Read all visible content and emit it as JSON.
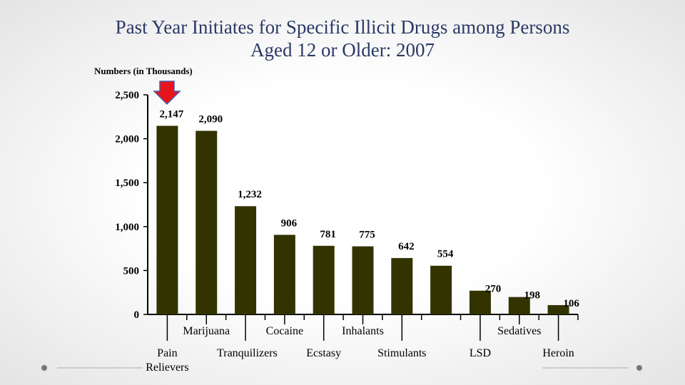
{
  "chart_data": {
    "type": "bar",
    "title": "Past Year Initiates for Specific Illicit Drugs among Persons Aged 12 or Older: 2007",
    "y_axis_label": "Numbers (in Thousands)",
    "categories": [
      "Pain Relievers",
      "Marijuana",
      "Tranquilizers",
      "Cocaine",
      "Ecstasy",
      "Inhalants",
      "Stimulants",
      null,
      "LSD",
      "Sedatives",
      "Heroin"
    ],
    "values": [
      2147,
      2090,
      1232,
      906,
      781,
      775,
      642,
      554,
      270,
      198,
      106
    ],
    "value_labels": [
      "2,147",
      "2,090",
      "1,232",
      "906",
      "781",
      "775",
      "642",
      "554",
      "270",
      "198",
      "106"
    ],
    "color": "#333300",
    "ylim": [
      0,
      2500
    ],
    "yticks": [
      0,
      500,
      {
        "value": 1000,
        "label": "1,000"
      },
      {
        "value": 1500,
        "label": "1,500"
      },
      {
        "value": 2000,
        "label": "2,000"
      },
      {
        "value": 2500,
        "label": "2,500"
      }
    ],
    "grid": false
  }
}
